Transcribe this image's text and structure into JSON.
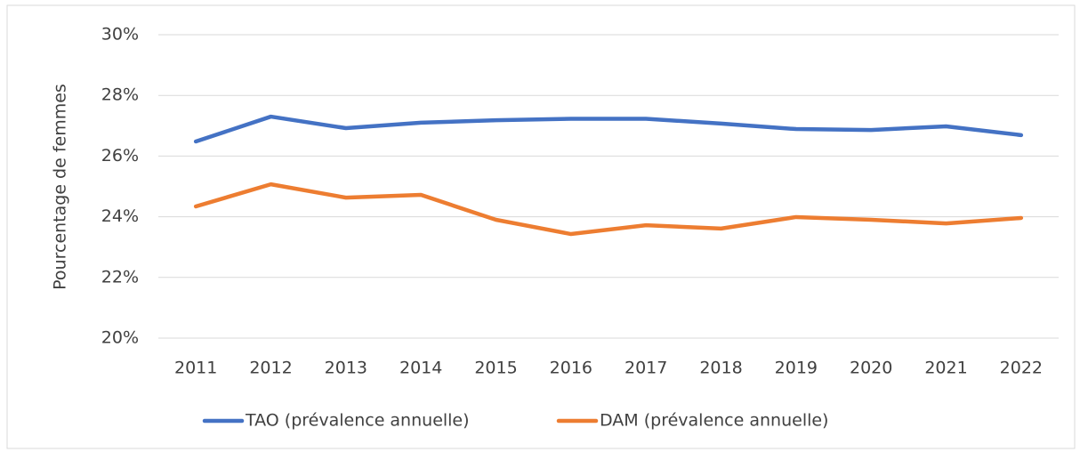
{
  "chart_data": {
    "type": "line",
    "y_label": "Pourcentage de femmes",
    "categories": [
      "2011",
      "2012",
      "2013",
      "2014",
      "2015",
      "2016",
      "2017",
      "2018",
      "2019",
      "2020",
      "2021",
      "2022"
    ],
    "series": [
      {
        "name": "TAO (prévalence annuelle)",
        "color": "#4472c4",
        "values": [
          26.48,
          27.3,
          26.92,
          27.1,
          27.18,
          27.23,
          27.23,
          27.07,
          26.89,
          26.86,
          26.98,
          26.69
        ]
      },
      {
        "name": "DAM (prévalence annuelle)",
        "color": "#ed7d31",
        "values": [
          24.34,
          25.07,
          24.63,
          24.72,
          23.9,
          23.43,
          23.72,
          23.61,
          23.99,
          23.9,
          23.78,
          23.96
        ]
      }
    ],
    "ylim": [
      20,
      30
    ],
    "yticks": [
      {
        "value": 20,
        "label": "20%"
      },
      {
        "value": 22,
        "label": "22%"
      },
      {
        "value": 24,
        "label": "24%"
      },
      {
        "value": 26,
        "label": "26%"
      },
      {
        "value": 28,
        "label": "28%"
      },
      {
        "value": 30,
        "label": "30%"
      }
    ],
    "grid": true,
    "legend": "bottom"
  }
}
